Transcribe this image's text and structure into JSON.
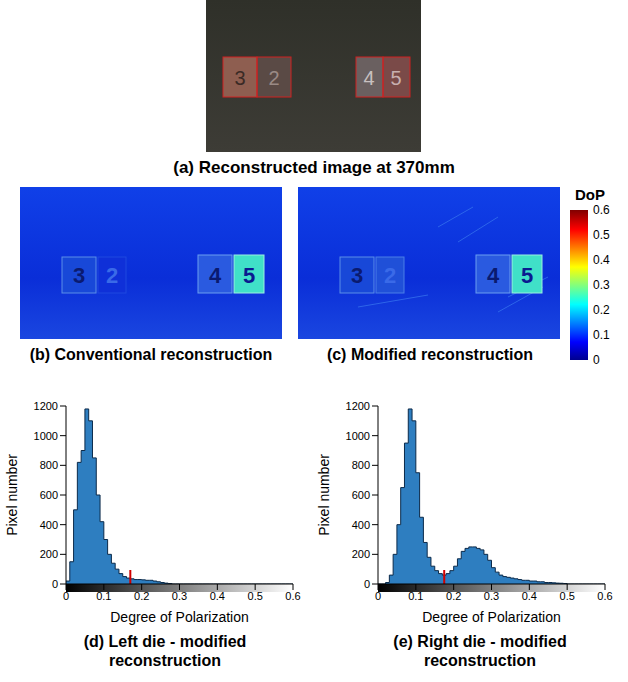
{
  "panels": {
    "a": {
      "caption": "(a) Reconstructed image at 370mm"
    },
    "b": {
      "caption": "(b) Conventional reconstruction"
    },
    "c": {
      "caption": "(c) Modified reconstruction"
    }
  },
  "dice_labels": [
    "3",
    "2",
    "4",
    "5"
  ],
  "colorbar": {
    "title": "DoP",
    "range": [
      0,
      0.6
    ],
    "ticks": [
      0,
      0.1,
      0.2,
      0.3,
      0.4,
      0.5,
      0.6
    ]
  },
  "chart_data": [
    {
      "type": "histogram",
      "caption": "(d) Left die - modified reconstruction",
      "x_label": "Degree of Polarization",
      "y_label": "Pixel number",
      "bins": [
        0,
        0.01,
        0.02,
        0.03,
        0.04,
        0.05,
        0.06,
        0.07,
        0.08,
        0.09,
        0.1,
        0.11,
        0.12,
        0.13,
        0.14,
        0.15,
        0.16,
        0.17,
        0.18,
        0.19,
        0.2,
        0.21,
        0.22,
        0.23,
        0.24,
        0.25,
        0.26,
        0.27,
        0.28,
        0.29,
        0.3,
        0.31,
        0.32,
        0.33,
        0.34,
        0.35,
        0.36,
        0.37,
        0.38,
        0.39,
        0.4,
        0.41,
        0.42,
        0.43,
        0.44,
        0.45,
        0.46,
        0.47,
        0.48,
        0.49,
        0.5,
        0.51,
        0.52,
        0.53,
        0.54,
        0.55,
        0.56,
        0.57,
        0.58,
        0.59,
        0.6
      ],
      "counts": [
        20,
        150,
        500,
        820,
        900,
        1180,
        1100,
        850,
        600,
        420,
        300,
        200,
        140,
        100,
        70,
        50,
        40,
        35,
        30,
        30,
        28,
        25,
        25,
        20,
        15,
        10,
        6,
        3,
        0,
        0,
        0,
        0,
        0,
        0,
        0,
        0,
        0,
        0,
        0,
        0,
        0,
        0,
        0,
        0,
        0,
        0,
        0,
        0,
        0,
        0,
        0,
        0,
        0,
        0,
        0,
        0,
        0,
        0,
        0,
        0
      ],
      "threshold": 0.17,
      "color": "#2e7ec0",
      "xlim": [
        0,
        0.6
      ],
      "xticks": [
        0,
        0.1,
        0.2,
        0.3,
        0.4,
        0.5,
        0.6
      ],
      "ylim": [
        0,
        1200
      ],
      "yticks": [
        0,
        200,
        400,
        600,
        800,
        1000,
        1200
      ]
    },
    {
      "type": "histogram",
      "caption": "(e) Right die - modified reconstruction",
      "x_label": "Degree of Polarization",
      "y_label": "Pixel number",
      "bins": [
        0,
        0.01,
        0.02,
        0.03,
        0.04,
        0.05,
        0.06,
        0.07,
        0.08,
        0.09,
        0.1,
        0.11,
        0.12,
        0.13,
        0.14,
        0.15,
        0.16,
        0.17,
        0.18,
        0.19,
        0.2,
        0.21,
        0.22,
        0.23,
        0.24,
        0.25,
        0.26,
        0.27,
        0.28,
        0.29,
        0.3,
        0.31,
        0.32,
        0.33,
        0.34,
        0.35,
        0.36,
        0.37,
        0.38,
        0.39,
        0.4,
        0.41,
        0.42,
        0.43,
        0.44,
        0.45,
        0.46,
        0.47,
        0.48,
        0.49,
        0.5,
        0.51,
        0.52,
        0.53,
        0.54,
        0.55,
        0.56,
        0.57,
        0.58,
        0.59,
        0.6
      ],
      "counts": [
        0,
        0,
        10,
        60,
        200,
        400,
        650,
        950,
        1180,
        1100,
        750,
        450,
        280,
        180,
        120,
        90,
        70,
        60,
        70,
        90,
        120,
        170,
        220,
        240,
        250,
        250,
        240,
        230,
        200,
        160,
        110,
        80,
        60,
        50,
        45,
        40,
        35,
        30,
        25,
        25,
        20,
        20,
        15,
        15,
        10,
        10,
        8,
        6,
        5,
        3,
        0,
        0,
        0,
        0,
        0,
        0,
        0,
        0,
        0,
        0
      ],
      "threshold": 0.175,
      "color": "#2e7ec0",
      "xlim": [
        0,
        0.6
      ],
      "xticks": [
        0,
        0.1,
        0.2,
        0.3,
        0.4,
        0.5,
        0.6
      ],
      "ylim": [
        0,
        1200
      ],
      "yticks": [
        0,
        200,
        400,
        600,
        800,
        1000,
        1200
      ]
    }
  ]
}
